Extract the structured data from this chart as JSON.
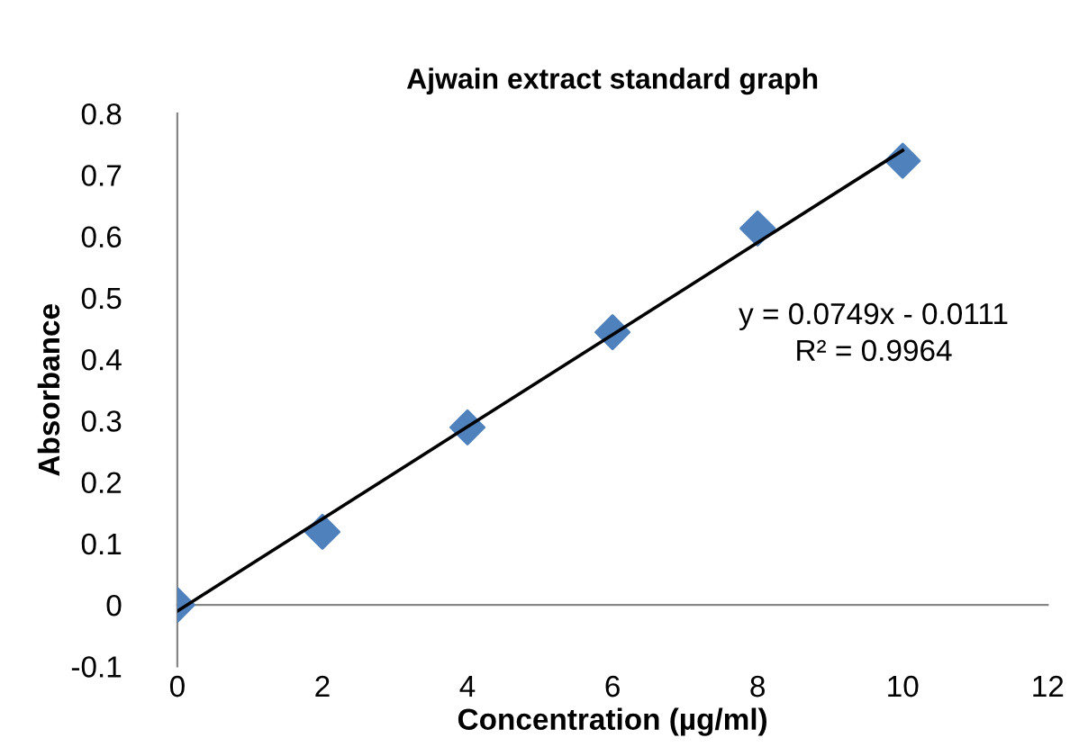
{
  "chart_data": {
    "type": "scatter",
    "title": "Ajwain extract standard graph",
    "xlabel": "Concentration (µg/ml)",
    "ylabel": "Absorbance",
    "series": [
      {
        "color": "#4f81bd",
        "marker": "diamond",
        "x": [
          0,
          2,
          4,
          6,
          8,
          10
        ],
        "values": [
          0,
          0.119,
          0.289,
          0.444,
          0.613,
          0.723
        ]
      },
      {
        "type": "line",
        "color": "#000000",
        "marker": "none",
        "line_style": "solid",
        "x": [
          0,
          10
        ],
        "values": [
          -0.01,
          0.74
        ]
      }
    ],
    "annotations": [
      "y = 0.0749x - 0.0111\nR² = 0.9964"
    ],
    "xlim": [
      0,
      12
    ],
    "xticks": [
      0,
      2,
      4,
      6,
      8,
      10,
      12
    ],
    "ylim": [
      -0.1,
      0.8
    ],
    "yticks": [
      -0.1,
      0,
      0.1,
      0.2,
      0.3,
      0.4,
      0.5,
      0.6,
      0.7,
      0.8
    ],
    "grid": false,
    "legend": false
  }
}
